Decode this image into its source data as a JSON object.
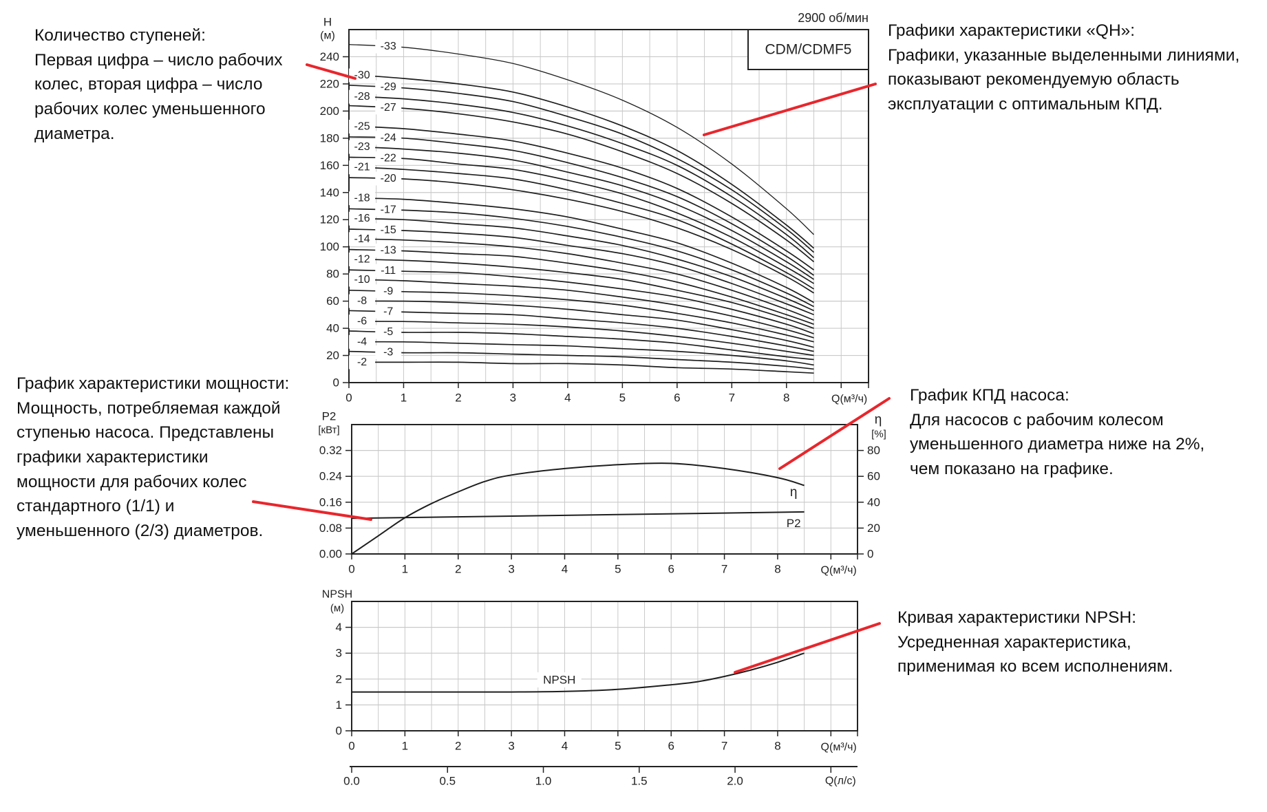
{
  "annotations": [
    {
      "id": "stages",
      "lines": [
        "Количество ступеней:",
        "Первая цифра – число рабочих",
        "колес, вторая цифра – число",
        "рабочих колес уменьшенного",
        "диаметра."
      ]
    },
    {
      "id": "qh",
      "lines": [
        "Графики характеристики «QH»:",
        "Графики, указанные выделенными линиями,",
        "показывают рекомендуемую область",
        "эксплуатации с оптимальным КПД."
      ]
    },
    {
      "id": "power",
      "lines": [
        "График характеристики мощности:",
        "Мощность, потребляемая каждой",
        "ступенью насоса. Представлены",
        "графики характеристики",
        "мощности для рабочих колес",
        "стандартного (1/1) и",
        "уменьшенного (2/3) диаметров."
      ]
    },
    {
      "id": "efficiency",
      "lines": [
        "График КПД насоса:",
        "Для насосов с рабочим колесом",
        "уменьшенного диаметра ниже на 2%,",
        "чем показано на графике."
      ]
    },
    {
      "id": "npsh",
      "lines": [
        "Кривая характеристики NPSH:",
        "Усредненная характеристика,",
        "применимая ко всем исполнениям."
      ]
    }
  ],
  "colors": {
    "pointer": "#e8262c",
    "curve": "#1e1e1e",
    "grid": "#c9c9c9",
    "axis": "#222222"
  },
  "chart_data": [
    {
      "id": "qh",
      "type": "line",
      "model_label": "CDM/CDMF5",
      "speed_label": "2900 об/мин",
      "ylabel": "H",
      "yunit": "(м)",
      "xlabel": "Q(м³/ч)",
      "xlim": [
        0,
        9.5
      ],
      "ylim": [
        0,
        260
      ],
      "xticks": [
        0,
        1,
        2,
        3,
        4,
        5,
        6,
        7,
        8
      ],
      "yticks": [
        0,
        20,
        40,
        60,
        80,
        100,
        120,
        140,
        160,
        180,
        200,
        220,
        240
      ],
      "grid": true,
      "x": [
        0,
        1,
        2,
        3,
        4,
        5,
        6,
        7,
        8,
        8.5
      ],
      "series": [
        {
          "name": "-33",
          "values": [
            249,
            247,
            242,
            235,
            223,
            208,
            188,
            161,
            128,
            109
          ]
        },
        {
          "name": "-30",
          "values": [
            227,
            224,
            220,
            214,
            203,
            189,
            171,
            146,
            116,
            99
          ]
        },
        {
          "name": "-29",
          "values": [
            219,
            217,
            213,
            207,
            196,
            183,
            165,
            142,
            113,
            96
          ]
        },
        {
          "name": "-28",
          "values": [
            211,
            209,
            205,
            199,
            189,
            176,
            160,
            137,
            109,
            92
          ]
        },
        {
          "name": "-27",
          "values": [
            204,
            202,
            198,
            192,
            183,
            170,
            154,
            132,
            105,
            89
          ]
        },
        {
          "name": "-25",
          "values": [
            189,
            187,
            183,
            178,
            169,
            158,
            143,
            122,
            97,
            83
          ]
        },
        {
          "name": "-24",
          "values": [
            181,
            180,
            176,
            171,
            162,
            151,
            137,
            117,
            93,
            79
          ]
        },
        {
          "name": "-23",
          "values": [
            174,
            172,
            169,
            164,
            155,
            145,
            131,
            112,
            89,
            76
          ]
        },
        {
          "name": "-22",
          "values": [
            166,
            165,
            161,
            157,
            149,
            139,
            125,
            107,
            85,
            73
          ]
        },
        {
          "name": "-21",
          "values": [
            159,
            157,
            154,
            150,
            142,
            132,
            120,
            102,
            81,
            69
          ]
        },
        {
          "name": "-20",
          "values": [
            151,
            150,
            147,
            142,
            135,
            126,
            114,
            98,
            78,
            66
          ]
        },
        {
          "name": "-18",
          "values": [
            136,
            135,
            132,
            128,
            122,
            113,
            103,
            88,
            70,
            59
          ]
        },
        {
          "name": "-17",
          "values": [
            128,
            127,
            125,
            121,
            115,
            107,
            97,
            83,
            66,
            56
          ]
        },
        {
          "name": "-16",
          "values": [
            121,
            120,
            117,
            114,
            108,
            101,
            91,
            78,
            62,
            53
          ]
        },
        {
          "name": "-15",
          "values": [
            113,
            112,
            110,
            107,
            101,
            95,
            86,
            73,
            58,
            50
          ]
        },
        {
          "name": "-14",
          "values": [
            106,
            105,
            103,
            100,
            95,
            88,
            80,
            68,
            54,
            46
          ]
        },
        {
          "name": "-13",
          "values": [
            98,
            97,
            95,
            93,
            88,
            82,
            74,
            63,
            50,
            43
          ]
        },
        {
          "name": "-12",
          "values": [
            91,
            90,
            88,
            85,
            81,
            76,
            68,
            59,
            47,
            40
          ]
        },
        {
          "name": "-11",
          "values": [
            83,
            82,
            81,
            78,
            74,
            69,
            63,
            54,
            43,
            36
          ]
        },
        {
          "name": "-10",
          "values": [
            76,
            75,
            73,
            71,
            68,
            63,
            57,
            49,
            39,
            33
          ]
        },
        {
          "name": "-9",
          "values": [
            68,
            67,
            66,
            64,
            61,
            57,
            51,
            44,
            35,
            30
          ]
        },
        {
          "name": "-8",
          "values": [
            60,
            60,
            59,
            57,
            54,
            50,
            46,
            39,
            31,
            26
          ]
        },
        {
          "name": "-7",
          "values": [
            53,
            52,
            51,
            50,
            47,
            44,
            40,
            34,
            27,
            23
          ]
        },
        {
          "name": "-6",
          "values": [
            45,
            45,
            44,
            43,
            41,
            38,
            34,
            29,
            23,
            20
          ]
        },
        {
          "name": "-5",
          "values": [
            38,
            37,
            37,
            36,
            34,
            32,
            29,
            24,
            19,
            17
          ]
        },
        {
          "name": "-4",
          "values": [
            30,
            30,
            29,
            28,
            27,
            25,
            23,
            20,
            16,
            13
          ]
        },
        {
          "name": "-3",
          "values": [
            23,
            22,
            22,
            21,
            20,
            19,
            17,
            15,
            12,
            10
          ]
        },
        {
          "name": "-2",
          "values": [
            15,
            15,
            15,
            14,
            14,
            13,
            11,
            10,
            8,
            7
          ]
        }
      ]
    },
    {
      "id": "p2",
      "type": "line",
      "ylabel": "P2",
      "yunit": "[кВт]",
      "y2label": "η",
      "y2unit": "[%]",
      "xlabel": "Q(м³/ч)",
      "xlim": [
        0,
        9.5
      ],
      "ylim": [
        0,
        0.4
      ],
      "y2lim": [
        0,
        100
      ],
      "xticks": [
        0,
        1,
        2,
        3,
        4,
        5,
        6,
        7,
        8
      ],
      "yticks": [
        "0.00",
        "0.08",
        "0.16",
        "0.24",
        "0.32"
      ],
      "y2ticks": [
        0,
        20,
        40,
        60,
        80
      ],
      "grid": true,
      "series": [
        {
          "name": "η",
          "axis": "right",
          "x": [
            0,
            0.5,
            1,
            1.5,
            2,
            2.5,
            3,
            4,
            5,
            6,
            7,
            8,
            8.5
          ],
          "values": [
            0,
            14,
            28,
            39,
            48,
            56,
            61,
            66,
            69,
            70,
            66,
            59,
            53
          ]
        },
        {
          "name": "P2",
          "axis": "left",
          "x": [
            0,
            8.5
          ],
          "values": [
            0.11,
            0.13
          ]
        }
      ]
    },
    {
      "id": "npsh",
      "type": "line",
      "ylabel": "NPSH",
      "yunit": "(м)",
      "xlabel": "Q(м³/ч)",
      "xlim": [
        0,
        9.5
      ],
      "ylim": [
        0,
        5
      ],
      "xticks": [
        0,
        1,
        2,
        3,
        4,
        5,
        6,
        7,
        8
      ],
      "yticks": [
        0,
        1,
        2,
        3,
        4
      ],
      "grid": true,
      "series": [
        {
          "name": "NPSH",
          "x": [
            0,
            1,
            2,
            3,
            4,
            5,
            6,
            6.5,
            7,
            7.5,
            8,
            8.5
          ],
          "values": [
            1.5,
            1.5,
            1.5,
            1.5,
            1.52,
            1.6,
            1.78,
            1.9,
            2.1,
            2.35,
            2.65,
            3.0
          ]
        }
      ],
      "secondary_x": {
        "label": "Q(л/с)",
        "ticks": [
          "0.0",
          "0.5",
          "1.0",
          "1.5",
          "2.0"
        ]
      }
    }
  ]
}
